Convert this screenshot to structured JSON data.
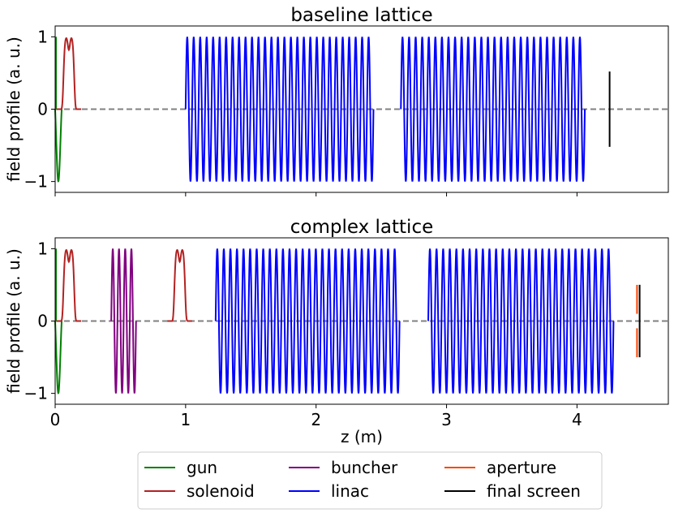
{
  "chart_data": [
    {
      "type": "line",
      "title": "baseline lattice",
      "xlabel": "",
      "ylabel": "field profile (a. u.)",
      "xlim": [
        0,
        4.7
      ],
      "ylim": [
        -1.15,
        1.15
      ],
      "xticks": [
        0,
        1,
        2,
        3,
        4
      ],
      "xtick_labels_visible": false,
      "yticks": [
        -1,
        0,
        1
      ],
      "ytick_labels": [
        "−1",
        "0",
        "1"
      ],
      "grid": false,
      "reference_line": {
        "y": 0,
        "style": "dashed",
        "color": "#808080"
      },
      "elements": [
        {
          "name": "gun",
          "kind": "gun",
          "z_start": 0.0,
          "z_end": 0.05,
          "color": "#008000"
        },
        {
          "name": "solenoid",
          "kind": "solenoid",
          "z_center": 0.105,
          "width": 0.19,
          "color": "#b22222"
        },
        {
          "name": "linac",
          "kind": "rf",
          "z_start": 1.0,
          "z_end": 2.44,
          "cycles": 29,
          "color": "#0000ff"
        },
        {
          "name": "linac",
          "kind": "rf",
          "z_start": 2.65,
          "z_end": 4.06,
          "cycles": 28,
          "color": "#0000ff"
        },
        {
          "name": "final screen",
          "kind": "screen",
          "z": 4.25,
          "y_range": [
            -0.52,
            0.52
          ],
          "color": "#000000"
        }
      ]
    },
    {
      "type": "line",
      "title": "complex lattice",
      "xlabel": "z (m)",
      "ylabel": "field profile (a. u.)",
      "xlim": [
        0,
        4.7
      ],
      "ylim": [
        -1.15,
        1.15
      ],
      "xticks": [
        0,
        1,
        2,
        3,
        4
      ],
      "xtick_labels": [
        "0",
        "1",
        "2",
        "3",
        "4"
      ],
      "yticks": [
        -1,
        0,
        1
      ],
      "ytick_labels": [
        "−1",
        "0",
        "1"
      ],
      "grid": false,
      "reference_line": {
        "y": 0,
        "style": "dashed",
        "color": "#808080"
      },
      "elements": [
        {
          "name": "gun",
          "kind": "gun",
          "z_start": 0.0,
          "z_end": 0.05,
          "color": "#008000"
        },
        {
          "name": "solenoid",
          "kind": "solenoid",
          "z_center": 0.105,
          "width": 0.19,
          "color": "#b22222"
        },
        {
          "name": "buncher",
          "kind": "rf",
          "z_start": 0.43,
          "z_end": 0.62,
          "cycles": 4,
          "color": "#800080"
        },
        {
          "name": "solenoid",
          "kind": "solenoid",
          "z_center": 0.955,
          "width": 0.19,
          "color": "#b22222"
        },
        {
          "name": "linac",
          "kind": "rf",
          "z_start": 1.23,
          "z_end": 2.64,
          "cycles": 28,
          "color": "#0000ff"
        },
        {
          "name": "linac",
          "kind": "rf",
          "z_start": 2.86,
          "z_end": 4.28,
          "cycles": 28,
          "color": "#0000ff"
        },
        {
          "name": "aperture",
          "kind": "aperture",
          "z": 4.46,
          "y_ranges": [
            [
              -0.5,
              -0.1
            ],
            [
              0.1,
              0.5
            ]
          ],
          "color": "#ff4500"
        },
        {
          "name": "final screen",
          "kind": "screen",
          "z": 4.48,
          "y_range": [
            -0.5,
            0.5
          ],
          "color": "#000000"
        }
      ]
    }
  ],
  "legend": {
    "placement": "bottom-center",
    "columns": 3,
    "entries": [
      {
        "label": "gun",
        "color": "#008000"
      },
      {
        "label": "solenoid",
        "color": "#b22222"
      },
      {
        "label": "buncher",
        "color": "#800080"
      },
      {
        "label": "linac",
        "color": "#0000ff"
      },
      {
        "label": "aperture",
        "color": "#ff4500"
      },
      {
        "label": "final screen",
        "color": "#000000"
      }
    ]
  }
}
